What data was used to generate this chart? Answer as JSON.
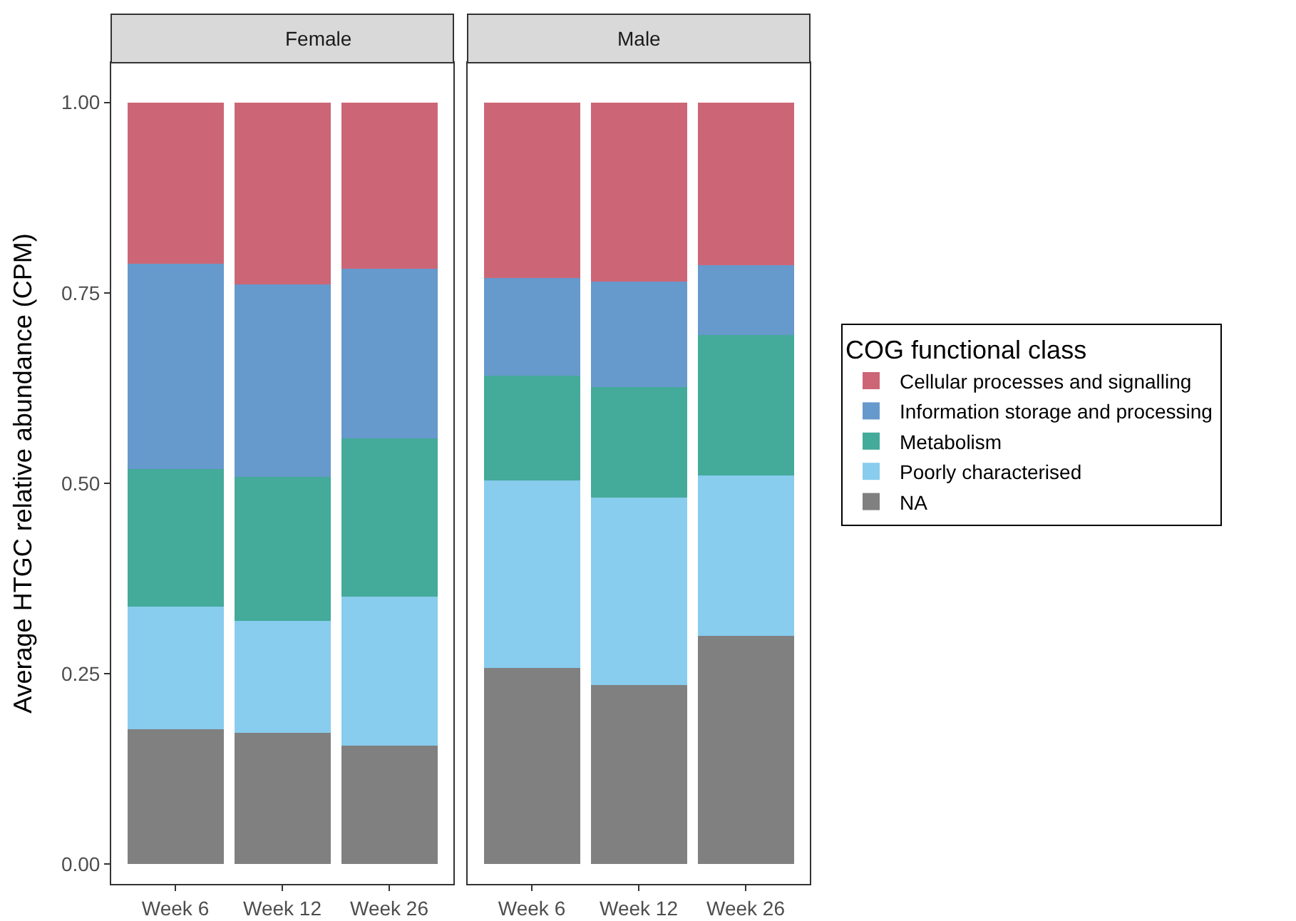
{
  "chart_data": [
    {
      "type": "bar",
      "title": "Female",
      "ylabel": "Average HTGC relative abundance (CPM)",
      "stacked": true,
      "categories": [
        "Week 6",
        "Week 12",
        "Week 26"
      ],
      "series": [
        {
          "name": "NA",
          "color": "#808080",
          "values": [
            0.177,
            0.172,
            0.156
          ]
        },
        {
          "name": "Poorly characterised",
          "color": "#88CCEE",
          "values": [
            0.161,
            0.147,
            0.195
          ]
        },
        {
          "name": "Metabolism",
          "color": "#44AA99",
          "values": [
            0.181,
            0.189,
            0.208
          ]
        },
        {
          "name": "Information storage and processing",
          "color": "#6699CC",
          "values": [
            0.269,
            0.253,
            0.223
          ]
        },
        {
          "name": "Cellular processes and signalling",
          "color": "#CC6677",
          "values": [
            0.212,
            0.239,
            0.218
          ]
        }
      ],
      "ylim": [
        -0.026,
        1.052
      ],
      "yticks": [
        {
          "value": 0,
          "label": "0.00"
        },
        {
          "value": 0.25,
          "label": "0.25"
        },
        {
          "value": 0.5,
          "label": "0.50"
        },
        {
          "value": 0.75,
          "label": "0.75"
        },
        {
          "value": 1,
          "label": "1.00"
        }
      ],
      "legend": "right",
      "legend_title": "COG functional class"
    },
    {
      "type": "bar",
      "title": "Male",
      "stacked": true,
      "categories": [
        "Week 6",
        "Week 12",
        "Week 26"
      ],
      "series": [
        {
          "color": "#808080",
          "values": [
            0.258,
            0.235,
            0.3
          ]
        },
        {
          "color": "#88CCEE",
          "values": [
            0.246,
            0.246,
            0.21
          ]
        },
        {
          "color": "#44AA99",
          "values": [
            0.137,
            0.145,
            0.185
          ]
        },
        {
          "color": "#6699CC",
          "values": [
            0.128,
            0.139,
            0.091
          ]
        },
        {
          "color": "#CC6677",
          "values": [
            0.231,
            0.235,
            0.214
          ]
        }
      ],
      "ylim": [
        -0.026,
        1.052
      ],
      "tick_labels": "x"
    }
  ]
}
